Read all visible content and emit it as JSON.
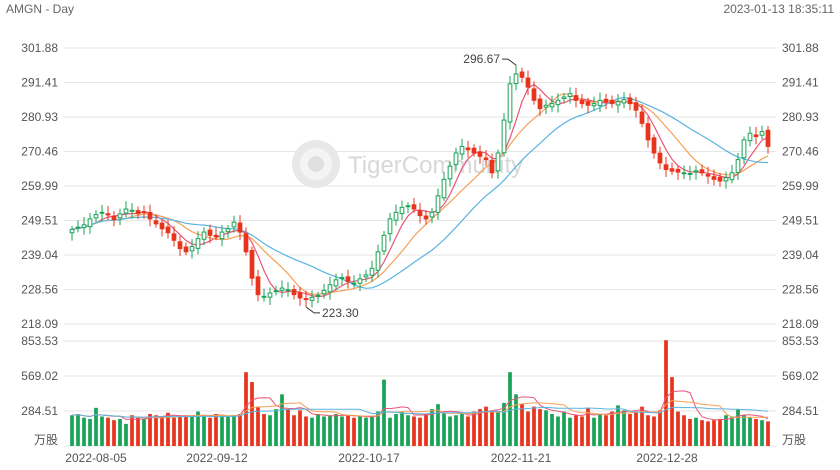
{
  "header": {
    "title": "AMGN - Day",
    "timestamp": "2023-01-13 18:35:11"
  },
  "watermark": "TigerCommunity",
  "colors": {
    "up": "#19a356",
    "down": "#e8341c",
    "ma5": "#e8557a",
    "ma10": "#f5a055",
    "ma20": "#5ab4e0",
    "grid": "#e6e6e6"
  },
  "chart_data": [
    {
      "type": "candlestick",
      "title": "AMGN - Day",
      "y_ticks": [
        301.88,
        291.41,
        280.93,
        270.46,
        259.99,
        249.51,
        239.04,
        228.56,
        218.09
      ],
      "ylim": [
        218.09,
        301.88
      ],
      "x_ticks": [
        "2022-08-05",
        "2022-09-12",
        "2022-10-17",
        "2022-11-21",
        "2022-12-28"
      ],
      "annotations": [
        {
          "text": "296.67",
          "value": 296.67,
          "type": "high"
        },
        {
          "text": "223.30",
          "value": 223.3,
          "type": "low"
        }
      ],
      "closes": [
        246.8,
        247.5,
        248.2,
        250.0,
        251.3,
        252.0,
        251.2,
        249.8,
        251.5,
        253.0,
        252.6,
        251.6,
        252.0,
        250.0,
        248.5,
        247.0,
        245.8,
        243.5,
        241.0,
        240.0,
        241.6,
        244.0,
        246.0,
        245.0,
        244.6,
        246.0,
        247.0,
        249.0,
        246.0,
        240.0,
        232.0,
        227.0,
        226.5,
        227.5,
        228.2,
        229.0,
        228.5,
        227.0,
        226.0,
        225.8,
        226.2,
        226.8,
        228.3,
        230.0,
        231.5,
        232.2,
        231.0,
        230.5,
        231.8,
        233.0,
        235.0,
        240.0,
        245.0,
        250.0,
        252.0,
        253.5,
        254.0,
        253.0,
        251.0,
        250.0,
        252.0,
        257.0,
        262.0,
        266.0,
        270.0,
        272.0,
        271.0,
        270.0,
        269.0,
        268.0,
        264.0,
        270.0,
        280.0,
        291.0,
        294.0,
        293.0,
        290.0,
        286.0,
        283.5,
        284.5,
        285.0,
        286.0,
        287.0,
        288.0,
        286.0,
        285.0,
        284.5,
        285.0,
        286.0,
        285.5,
        285.0,
        285.6,
        286.2,
        285.0,
        283.0,
        279.0,
        274.0,
        270.0,
        267.0,
        265.0,
        264.5,
        264.2,
        264.0,
        263.8,
        264.6,
        264.0,
        263.0,
        262.0,
        261.5,
        262.5,
        264.0,
        268.0,
        274.0,
        276.0,
        275.0,
        276.5,
        272.0
      ],
      "volume_y_ticks": [
        853.53,
        569.02,
        284.51
      ],
      "volume_unit": "万股",
      "volume_max": 853.53,
      "volumes": [
        250,
        260,
        230,
        220,
        310,
        240,
        230,
        210,
        220,
        180,
        250,
        230,
        220,
        260,
        250,
        240,
        270,
        230,
        240,
        250,
        240,
        280,
        240,
        230,
        260,
        250,
        240,
        250,
        260,
        600,
        520,
        320,
        260,
        250,
        300,
        420,
        300,
        250,
        290,
        240,
        230,
        260,
        240,
        250,
        260,
        240,
        250,
        230,
        240,
        230,
        240,
        280,
        540,
        230,
        260,
        280,
        250,
        240,
        230,
        260,
        300,
        340,
        270,
        240,
        250,
        260,
        240,
        280,
        300,
        320,
        290,
        280,
        350,
        600,
        420,
        340,
        280,
        320,
        300,
        290,
        260,
        240,
        280,
        230,
        250,
        240,
        310,
        230,
        260,
        250,
        280,
        330,
        290,
        260,
        280,
        320,
        250,
        240,
        290,
        860,
        560,
        280,
        250,
        220,
        230,
        210,
        200,
        210,
        220,
        250,
        240,
        300,
        250,
        230,
        220,
        210,
        200
      ]
    }
  ]
}
